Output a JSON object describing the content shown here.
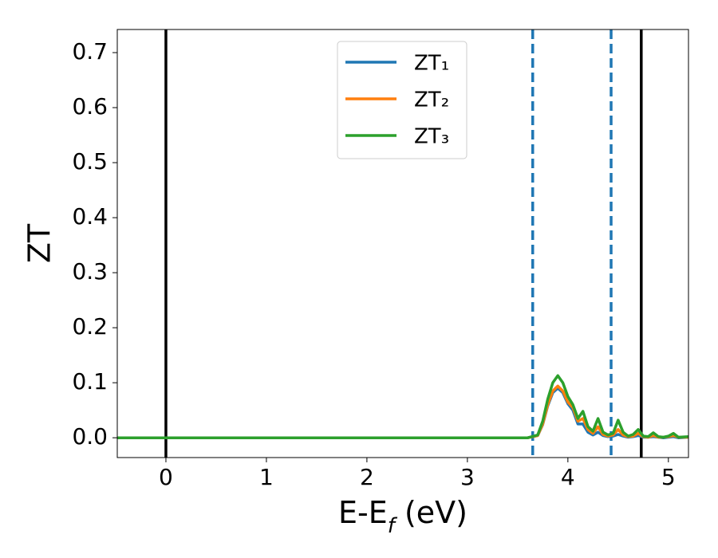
{
  "chart_data": {
    "type": "line",
    "xlabel": [
      "E-E",
      "f",
      " (eV)"
    ],
    "ylabel": "ZT",
    "x": [
      -0.48,
      3.6,
      3.7,
      3.75,
      3.8,
      3.85,
      3.9,
      3.95,
      4.0,
      4.05,
      4.1,
      4.15,
      4.2,
      4.25,
      4.3,
      4.35,
      4.4,
      4.45,
      4.5,
      4.55,
      4.6,
      4.65,
      4.7,
      4.75,
      4.8,
      4.85,
      4.9,
      4.95,
      5.0,
      5.05,
      5.1,
      5.2
    ],
    "series": [
      {
        "name": "ZT₁",
        "color": "#1f77b4",
        "values": [
          0,
          0,
          0.004,
          0.024,
          0.058,
          0.082,
          0.09,
          0.082,
          0.062,
          0.05,
          0.025,
          0.025,
          0.01,
          0.005,
          0.01,
          0.004,
          0.002,
          0.003,
          0.006,
          0.003,
          0.001,
          0.002,
          0.004,
          0.001,
          0.001,
          0.002,
          0.001,
          0,
          0.001,
          0.002,
          0,
          0.001
        ]
      },
      {
        "name": "ZT₂",
        "color": "#ff7f0e",
        "values": [
          0,
          0,
          0.004,
          0.025,
          0.06,
          0.085,
          0.094,
          0.085,
          0.065,
          0.055,
          0.03,
          0.035,
          0.015,
          0.008,
          0.02,
          0.006,
          0.003,
          0.005,
          0.015,
          0.005,
          0.002,
          0.003,
          0.008,
          0.002,
          0.001,
          0.004,
          0.001,
          0.001,
          0.002,
          0.004,
          0.001,
          0.001
        ]
      },
      {
        "name": "ZT₃",
        "color": "#2ca02c",
        "values": [
          0,
          0,
          0.005,
          0.03,
          0.07,
          0.1,
          0.113,
          0.1,
          0.075,
          0.06,
          0.035,
          0.048,
          0.02,
          0.012,
          0.035,
          0.01,
          0.005,
          0.008,
          0.032,
          0.01,
          0.003,
          0.006,
          0.015,
          0.003,
          0.002,
          0.009,
          0.002,
          0.001,
          0.003,
          0.008,
          0.001,
          0.002
        ]
      }
    ],
    "vlines": [
      {
        "x": 0,
        "color": "#000000",
        "dashed": false
      },
      {
        "x": 4.73,
        "color": "#000000",
        "dashed": false
      },
      {
        "x": 3.65,
        "color": "#1f77b4",
        "dashed": true
      },
      {
        "x": 4.43,
        "color": "#1f77b4",
        "dashed": true
      }
    ],
    "xlim": [
      -0.484,
      5.2
    ],
    "ylim": [
      -0.036,
      0.742
    ],
    "xticks": [
      0,
      1,
      2,
      3,
      4,
      5
    ],
    "yticks": [
      {
        "value": 0,
        "label": "0.0"
      },
      0.1,
      0.2,
      0.3,
      0.4,
      0.5,
      0.6,
      0.7
    ],
    "legend": "upper center"
  }
}
